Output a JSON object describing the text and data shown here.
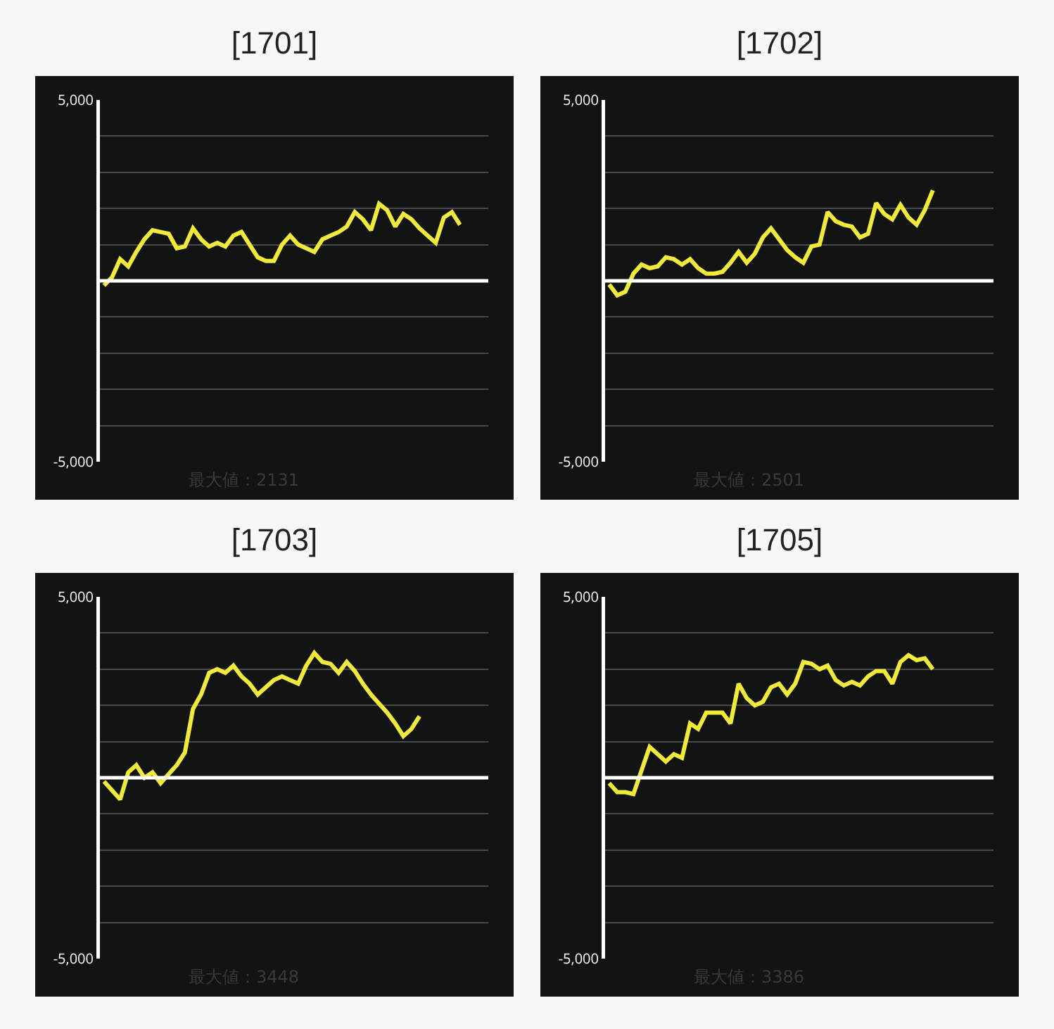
{
  "chart_data": [
    {
      "type": "line",
      "title": "[1701]",
      "categories": [
        null,
        null,
        null,
        null,
        null,
        null,
        null,
        null,
        null,
        null,
        null,
        null,
        null,
        null,
        null,
        null,
        null,
        null,
        null,
        null,
        null,
        null,
        null,
        null,
        null,
        null,
        null,
        null,
        null,
        null,
        null,
        null,
        null,
        null,
        null,
        null,
        null,
        null,
        null,
        null,
        null,
        null,
        null,
        null,
        null,
        null,
        null,
        null
      ],
      "series": [
        {
          "color": "#f2ea3a",
          "values": [
            -130,
            100,
            600,
            400,
            800,
            1150,
            1400,
            1350,
            1300,
            900,
            950,
            1450,
            1150,
            950,
            1050,
            950,
            1250,
            1350,
            1000,
            650,
            550,
            550,
            1000,
            1250,
            1000,
            900,
            800,
            1150,
            1250,
            1350,
            1500,
            1900,
            1700,
            1400,
            2130,
            1950,
            1500,
            1850,
            1700,
            1450,
            1250,
            1050,
            1750,
            1900,
            1550,
            null,
            null,
            null
          ]
        }
      ],
      "ylim": [
        -5000,
        5000
      ],
      "yticks": [
        {
          "value": -5000,
          "label": "-5,000"
        },
        {
          "value": -4000,
          "label": null
        },
        {
          "value": -3000,
          "label": null
        },
        {
          "value": -2000,
          "label": null
        },
        {
          "value": -1000,
          "label": null
        },
        {
          "value": 0,
          "label": null
        },
        {
          "value": 1000,
          "label": null
        },
        {
          "value": 2000,
          "label": null
        },
        {
          "value": 3000,
          "label": null
        },
        {
          "value": 4000,
          "label": null
        },
        {
          "value": 5000,
          "label": "5,000"
        }
      ],
      "grid": "y",
      "tick_labels": "y",
      "ref_lines": [
        {
          "axis": "y",
          "value": 0,
          "color": "#ffffff"
        }
      ],
      "annotations": [
        "最大値：2131"
      ]
    },
    {
      "type": "line",
      "title": "[1702]",
      "categories": [
        null,
        null,
        null,
        null,
        null,
        null,
        null,
        null,
        null,
        null,
        null,
        null,
        null,
        null,
        null,
        null,
        null,
        null,
        null,
        null,
        null,
        null,
        null,
        null,
        null,
        null,
        null,
        null,
        null,
        null,
        null,
        null,
        null,
        null,
        null,
        null,
        null,
        null,
        null,
        null,
        null,
        null,
        null,
        null,
        null,
        null,
        null,
        null
      ],
      "series": [
        {
          "color": "#f2ea3a",
          "values": [
            -100,
            -400,
            -300,
            200,
            450,
            350,
            400,
            650,
            600,
            450,
            600,
            350,
            200,
            200,
            250,
            500,
            800,
            500,
            750,
            1200,
            1450,
            1150,
            850,
            650,
            500,
            950,
            1000,
            1900,
            1650,
            1550,
            1500,
            1200,
            1300,
            2150,
            1850,
            1700,
            2100,
            1750,
            1550,
            1950,
            2501,
            null,
            null,
            null,
            null,
            null,
            null,
            null
          ]
        }
      ],
      "ylim": [
        -5000,
        5000
      ],
      "yticks": [
        {
          "value": -5000,
          "label": "-5,000"
        },
        {
          "value": -4000,
          "label": null
        },
        {
          "value": -3000,
          "label": null
        },
        {
          "value": -2000,
          "label": null
        },
        {
          "value": -1000,
          "label": null
        },
        {
          "value": 0,
          "label": null
        },
        {
          "value": 1000,
          "label": null
        },
        {
          "value": 2000,
          "label": null
        },
        {
          "value": 3000,
          "label": null
        },
        {
          "value": 4000,
          "label": null
        },
        {
          "value": 5000,
          "label": "5,000"
        }
      ],
      "grid": "y",
      "tick_labels": "y",
      "ref_lines": [
        {
          "axis": "y",
          "value": 0,
          "color": "#ffffff"
        }
      ],
      "annotations": [
        "最大値：2501"
      ]
    },
    {
      "type": "line",
      "title": "[1703]",
      "categories": [
        null,
        null,
        null,
        null,
        null,
        null,
        null,
        null,
        null,
        null,
        null,
        null,
        null,
        null,
        null,
        null,
        null,
        null,
        null,
        null,
        null,
        null,
        null,
        null,
        null,
        null,
        null,
        null,
        null,
        null,
        null,
        null,
        null,
        null,
        null,
        null,
        null,
        null,
        null,
        null,
        null,
        null,
        null,
        null,
        null,
        null,
        null,
        null
      ],
      "series": [
        {
          "color": "#f2ea3a",
          "values": [
            -100,
            -350,
            -600,
            150,
            350,
            0,
            150,
            -150,
            100,
            350,
            700,
            1900,
            2300,
            2900,
            3000,
            2900,
            3100,
            2800,
            2600,
            2300,
            2500,
            2700,
            2800,
            2700,
            2600,
            3100,
            3448,
            3200,
            3150,
            2900,
            3200,
            2950,
            2600,
            2300,
            2050,
            1800,
            1500,
            1150,
            1350,
            1700,
            null,
            null,
            null,
            null,
            null,
            null,
            null,
            null
          ]
        }
      ],
      "ylim": [
        -5000,
        5000
      ],
      "yticks": [
        {
          "value": -5000,
          "label": "-5,000"
        },
        {
          "value": -4000,
          "label": null
        },
        {
          "value": -3000,
          "label": null
        },
        {
          "value": -2000,
          "label": null
        },
        {
          "value": -1000,
          "label": null
        },
        {
          "value": 0,
          "label": null
        },
        {
          "value": 1000,
          "label": null
        },
        {
          "value": 2000,
          "label": null
        },
        {
          "value": 3000,
          "label": null
        },
        {
          "value": 4000,
          "label": null
        },
        {
          "value": 5000,
          "label": "5,000"
        }
      ],
      "grid": "y",
      "tick_labels": "y",
      "ref_lines": [
        {
          "axis": "y",
          "value": 0,
          "color": "#ffffff"
        }
      ],
      "annotations": [
        "最大値：3448"
      ]
    },
    {
      "type": "line",
      "title": "[1705]",
      "categories": [
        null,
        null,
        null,
        null,
        null,
        null,
        null,
        null,
        null,
        null,
        null,
        null,
        null,
        null,
        null,
        null,
        null,
        null,
        null,
        null,
        null,
        null,
        null,
        null,
        null,
        null,
        null,
        null,
        null,
        null,
        null,
        null,
        null,
        null,
        null,
        null,
        null,
        null,
        null,
        null,
        null,
        null,
        null,
        null,
        null,
        null,
        null,
        null
      ],
      "series": [
        {
          "color": "#f2ea3a",
          "values": [
            -150,
            -400,
            -400,
            -450,
            200,
            850,
            650,
            450,
            650,
            550,
            1500,
            1350,
            1800,
            1800,
            1800,
            1500,
            2600,
            2200,
            2000,
            2100,
            2500,
            2600,
            2300,
            2600,
            3200,
            3150,
            3000,
            3100,
            2700,
            2550,
            2650,
            2550,
            2800,
            2950,
            2950,
            2600,
            3200,
            3386,
            3250,
            3300,
            3000,
            null,
            null,
            null,
            null,
            null,
            null,
            null
          ]
        }
      ],
      "ylim": [
        -5000,
        5000
      ],
      "yticks": [
        {
          "value": -5000,
          "label": "-5,000"
        },
        {
          "value": -4000,
          "label": null
        },
        {
          "value": -3000,
          "label": null
        },
        {
          "value": -2000,
          "label": null
        },
        {
          "value": -1000,
          "label": null
        },
        {
          "value": 0,
          "label": null
        },
        {
          "value": 1000,
          "label": null
        },
        {
          "value": 2000,
          "label": null
        },
        {
          "value": 3000,
          "label": null
        },
        {
          "value": 4000,
          "label": null
        },
        {
          "value": 5000,
          "label": "5,000"
        }
      ],
      "grid": "y",
      "tick_labels": "y",
      "ref_lines": [
        {
          "axis": "y",
          "value": 0,
          "color": "#ffffff"
        }
      ],
      "annotations": [
        "最大値：3386"
      ]
    }
  ]
}
